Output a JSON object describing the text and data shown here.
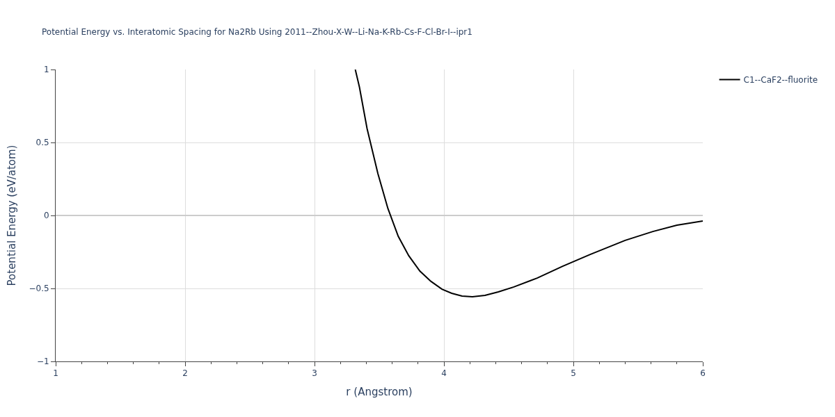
{
  "chart_data": {
    "type": "line",
    "title": "Potential Energy vs. Interatomic Spacing for Na2Rb Using 2011--Zhou-X-W--Li-Na-K-Rb-Cs-F-Cl-Br-I--ipr1",
    "xlabel": "r (Angstrom)",
    "ylabel": "Potential Energy (eV/atom)",
    "series": [
      {
        "name": "C1--CaF2--fluorite",
        "color": "#000000",
        "x": [
          3.315,
          3.347,
          3.406,
          3.49,
          3.567,
          3.647,
          3.728,
          3.814,
          3.9,
          3.985,
          4.06,
          4.14,
          4.22,
          4.317,
          4.42,
          4.54,
          4.72,
          4.917,
          5.13,
          5.4,
          5.614,
          5.8,
          6.0
        ],
        "values": [
          1.0,
          0.88,
          0.595,
          0.286,
          0.048,
          -0.143,
          -0.276,
          -0.381,
          -0.452,
          -0.505,
          -0.533,
          -0.552,
          -0.557,
          -0.548,
          -0.524,
          -0.49,
          -0.429,
          -0.348,
          -0.267,
          -0.171,
          -0.11,
          -0.067,
          -0.038
        ]
      }
    ],
    "xlim": [
      1,
      6
    ],
    "ylim": [
      -1,
      1
    ],
    "xticks": [
      1,
      {
        "value": 1.2,
        "label": null
      },
      {
        "value": 1.4,
        "label": null
      },
      {
        "value": 1.6,
        "label": null
      },
      {
        "value": 1.8,
        "label": null
      },
      2,
      {
        "value": 2.2,
        "label": null
      },
      {
        "value": 2.4,
        "label": null
      },
      {
        "value": 2.6,
        "label": null
      },
      {
        "value": 2.8,
        "label": null
      },
      3,
      {
        "value": 3.2,
        "label": null
      },
      {
        "value": 3.4,
        "label": null
      },
      {
        "value": 3.6,
        "label": null
      },
      {
        "value": 3.8,
        "label": null
      },
      4,
      {
        "value": 4.2,
        "label": null
      },
      {
        "value": 4.4,
        "label": null
      },
      {
        "value": 4.6,
        "label": null
      },
      {
        "value": 4.8,
        "label": null
      },
      5,
      {
        "value": 5.2,
        "label": null
      },
      {
        "value": 5.4,
        "label": null
      },
      {
        "value": 5.6,
        "label": null
      },
      {
        "value": 5.8,
        "label": null
      },
      6
    ],
    "yticks": [
      {
        "value": -1,
        "label": "−1"
      },
      {
        "value": -0.5,
        "label": "−0.5"
      },
      0,
      0.5,
      1
    ],
    "grid": true,
    "legend": "top right",
    "marker": "none",
    "line_style": "solid"
  }
}
